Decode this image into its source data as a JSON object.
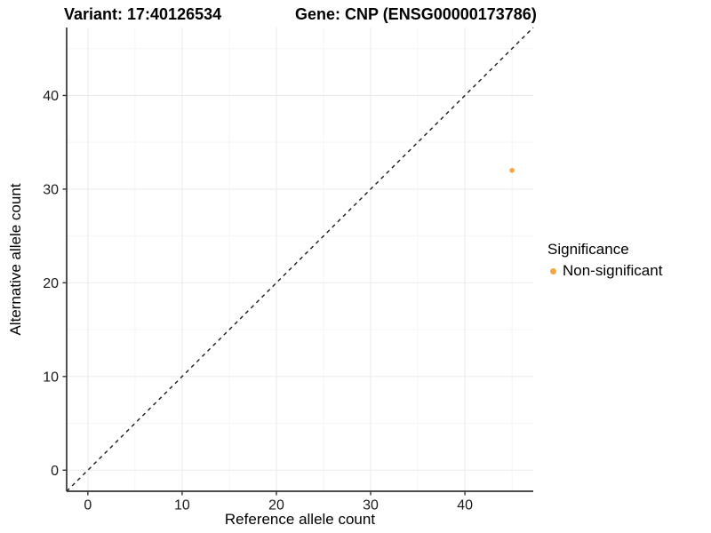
{
  "titles": {
    "variant": "Variant: 17:40126534",
    "gene": "Gene: CNP (ENSG00000173786)"
  },
  "axes": {
    "x_label": "Reference allele count",
    "y_label": "Alternative allele count"
  },
  "legend": {
    "title": "Significance",
    "items": [
      {
        "label": "Non-significant",
        "color": "#F7A544"
      }
    ]
  },
  "chart_data": {
    "type": "scatter",
    "title_left": "Variant: 17:40126534",
    "title_right": "Gene: CNP (ENSG00000173786)",
    "xlabel": "Reference allele count",
    "ylabel": "Alternative allele count",
    "xlim": [
      -2.25,
      47.25
    ],
    "ylim": [
      -2.25,
      47.25
    ],
    "x_ticks": [
      0,
      10,
      20,
      30,
      40
    ],
    "y_ticks": [
      0,
      10,
      20,
      30,
      40
    ],
    "x_minor_ticks": [
      5,
      15,
      25,
      35,
      45
    ],
    "y_minor_ticks": [
      5,
      15,
      25,
      35,
      45
    ],
    "grid": "major+minor",
    "legend_position": "right",
    "legend_title": "Significance",
    "series": [
      {
        "name": "Non-significant",
        "color": "#F7A544",
        "point_radius": 2.8,
        "points": [
          {
            "x": 45,
            "y": 32
          }
        ]
      }
    ],
    "reference_line": {
      "type": "abline",
      "slope": 1,
      "intercept": 0,
      "style": "dashed",
      "color": "#1a1a1a"
    },
    "style": {
      "axis_line_color": "#333333",
      "tick_color": "#333333",
      "tick_label_color": "#1a1a1a",
      "major_grid_color": "#EBEBEB",
      "minor_grid_color": "#F5F5F5",
      "panel_background": "#FFFFFF"
    }
  }
}
